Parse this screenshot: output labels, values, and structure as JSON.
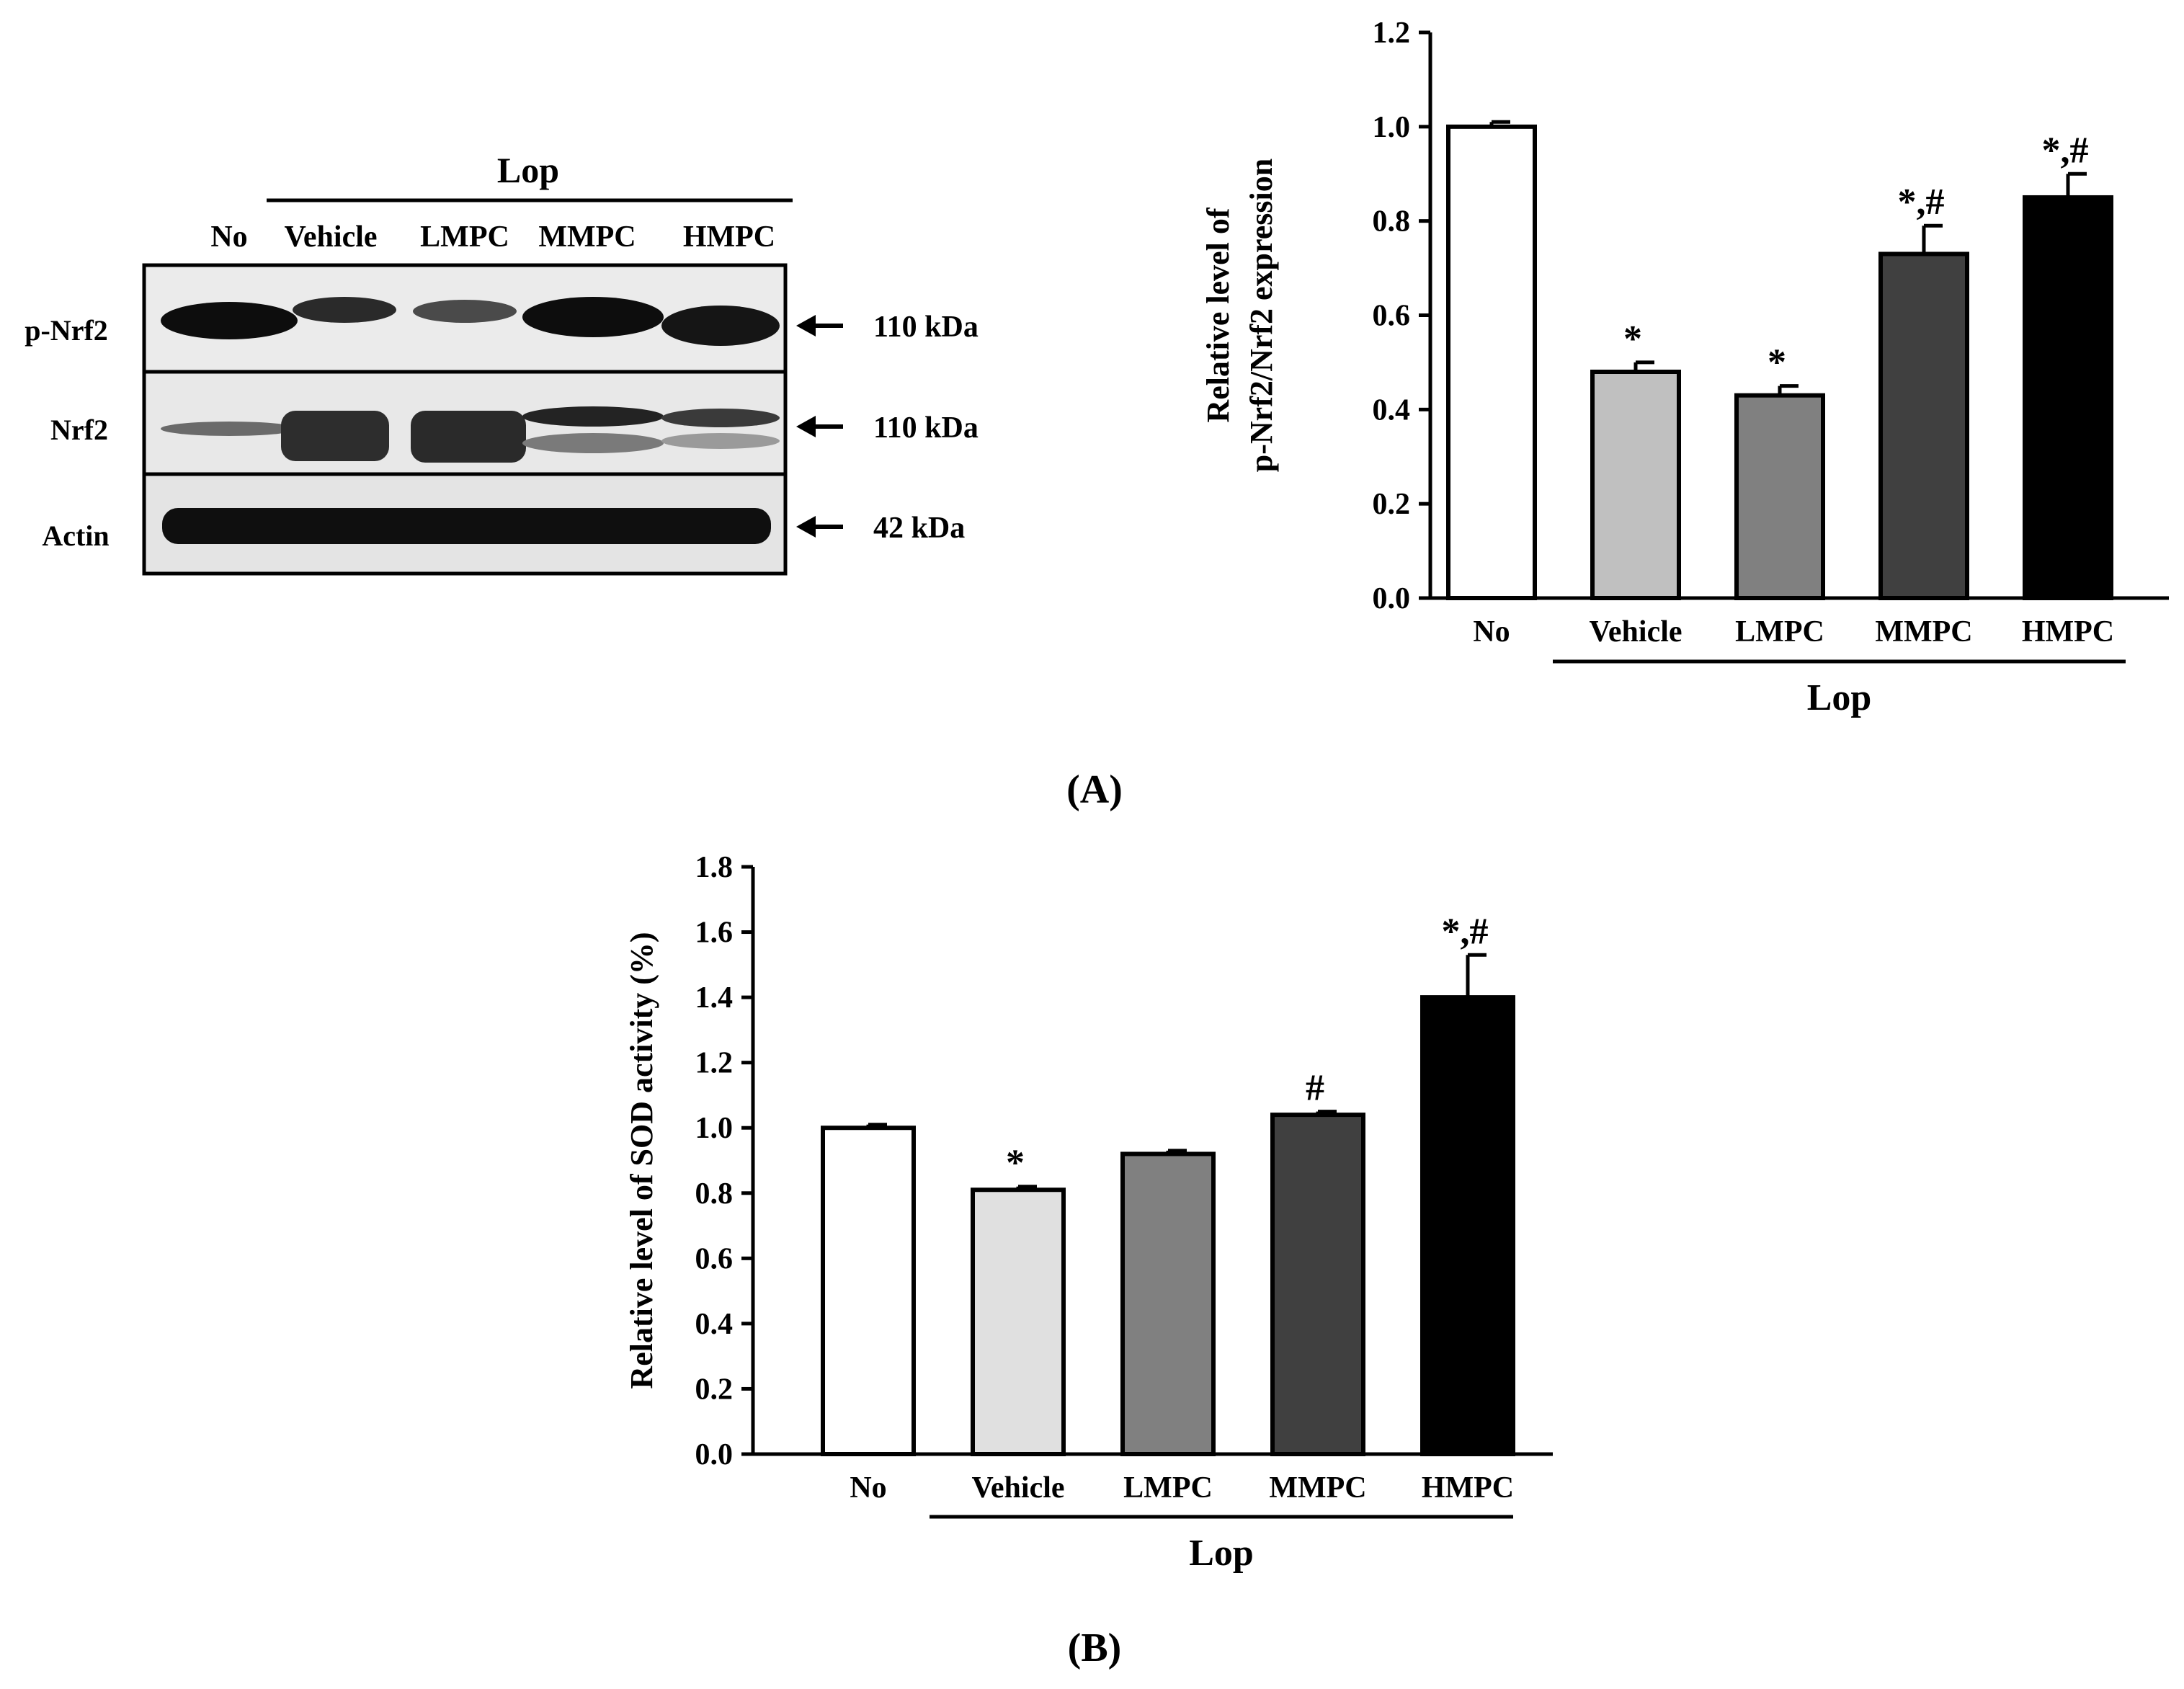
{
  "blot": {
    "group_label": "Lop",
    "lanes": [
      "No",
      "Vehicle",
      "LMPC",
      "MMPC",
      "HMPC"
    ],
    "rows": [
      {
        "label": "p-Nrf2",
        "size": "110 kDa"
      },
      {
        "label": "Nrf2",
        "size": "110 kDa"
      },
      {
        "label": "Actin",
        "size": "42 kDa"
      }
    ]
  },
  "panel_labels": {
    "a": "(A)",
    "b": "(B)"
  },
  "chart_data": [
    {
      "type": "bar",
      "panel": "A",
      "categories": [
        "No",
        "Vehicle",
        "LMPC",
        "MMPC",
        "HMPC"
      ],
      "values": [
        1.0,
        0.48,
        0.43,
        0.73,
        0.85
      ],
      "errors": [
        0.01,
        0.02,
        0.02,
        0.06,
        0.05
      ],
      "annotations": [
        "",
        "*",
        "*",
        "*,#",
        "*,#"
      ],
      "ylabel_lines": [
        "Relative level of",
        "p-Nrf2/Nrf2 expression"
      ],
      "group_label": "Lop",
      "group_members": [
        "Vehicle",
        "LMPC",
        "MMPC",
        "HMPC"
      ],
      "ylim": [
        0,
        1.2
      ],
      "yticks": [
        "0.0",
        "0.2",
        "0.4",
        "0.6",
        "0.8",
        "1.0",
        "1.2"
      ],
      "colors": [
        "#ffffff",
        "#c0c0c0",
        "#808080",
        "#404040",
        "#000000"
      ]
    },
    {
      "type": "bar",
      "panel": "B",
      "categories": [
        "No",
        "Vehicle",
        "LMPC",
        "MMPC",
        "HMPC"
      ],
      "values": [
        1.0,
        0.81,
        0.92,
        1.04,
        1.4
      ],
      "errors": [
        0.01,
        0.01,
        0.01,
        0.01,
        0.13
      ],
      "annotations": [
        "",
        "*",
        "",
        "#",
        "*,#"
      ],
      "ylabel_lines": [
        "Relative level of SOD activity (%)"
      ],
      "group_label": "Lop",
      "group_members": [
        "Vehicle",
        "LMPC",
        "MMPC",
        "HMPC"
      ],
      "ylim": [
        0,
        1.8
      ],
      "yticks": [
        "0.0",
        "0.2",
        "0.4",
        "0.6",
        "0.8",
        "1.0",
        "1.2",
        "1.4",
        "1.6",
        "1.8"
      ],
      "colors": [
        "#ffffff",
        "#e0e0e0",
        "#808080",
        "#404040",
        "#000000"
      ]
    }
  ]
}
